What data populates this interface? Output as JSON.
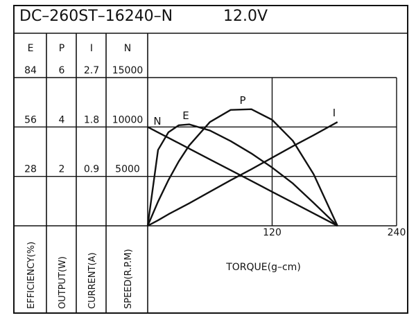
{
  "chart_data": {
    "type": "line",
    "title": "DC–260ST–16240–N",
    "subtitle": "12.0V",
    "x_label": "TORQUE(g–cm)",
    "xlim": [
      0,
      240
    ],
    "xticks": [
      120,
      240
    ],
    "x": [
      0,
      10,
      20,
      30,
      40,
      60,
      80,
      100,
      120,
      140,
      160,
      183
    ],
    "axes": [
      {
        "name": "E",
        "label": "EFFICIENCY(%)",
        "ylim": [
          0,
          84
        ],
        "yticks": [
          28,
          56,
          84
        ]
      },
      {
        "name": "P",
        "label": "OUTPUT(W)",
        "ylim": [
          0,
          6
        ],
        "yticks": [
          2,
          4,
          6
        ]
      },
      {
        "name": "I",
        "label": "CURRENT(A)",
        "ylim": [
          0,
          2.7
        ],
        "yticks": [
          0.9,
          1.8,
          2.7
        ]
      },
      {
        "name": "N",
        "label": "SPEED(R.P.M)",
        "ylim": [
          0,
          15000
        ],
        "yticks": [
          5000,
          10000,
          15000
        ]
      }
    ],
    "series": [
      {
        "name": "N",
        "axis": 3,
        "color": "#111111",
        "values": [
          10000,
          9450,
          8910,
          8360,
          7810,
          6720,
          5630,
          4540,
          3440,
          2350,
          1260,
          0
        ]
      },
      {
        "name": "E",
        "axis": 0,
        "color": "#111111",
        "values": [
          0,
          43,
          53,
          57,
          57.5,
          54,
          48,
          41,
          33,
          24,
          13,
          0
        ]
      },
      {
        "name": "P",
        "axis": 1,
        "color": "#111111",
        "values": [
          0,
          0.98,
          1.85,
          2.61,
          3.25,
          4.2,
          4.69,
          4.72,
          4.29,
          3.44,
          2.09,
          0
        ]
      },
      {
        "name": "I",
        "axis": 2,
        "color": "#111111",
        "values": [
          0,
          0.1,
          0.21,
          0.31,
          0.41,
          0.62,
          0.83,
          1.03,
          1.24,
          1.45,
          1.65,
          1.89
        ]
      }
    ],
    "grid": true
  }
}
